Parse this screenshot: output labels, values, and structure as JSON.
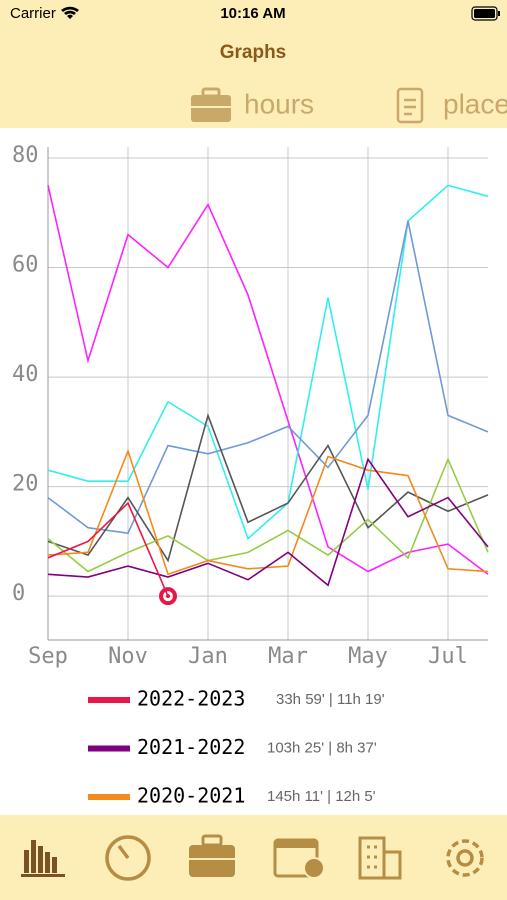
{
  "status_bar": {
    "carrier": "Carrier",
    "time": "10:16 AM"
  },
  "nav": {
    "title": "Graphs"
  },
  "tabs": [
    "hours",
    "place"
  ],
  "chart_data": {
    "type": "line",
    "categories": [
      "Sep",
      null,
      "Nov",
      null,
      "Jan",
      null,
      "Mar",
      null,
      "May",
      null,
      "Jul",
      null
    ],
    "ylim": [
      -8,
      82
    ],
    "yticks": [
      0,
      20,
      40,
      60,
      80
    ],
    "grid": true,
    "series": [
      {
        "name": "2022-2023",
        "summary": "33h 59' | 11h 19'",
        "color": "#e8174a",
        "values": [
          7,
          10,
          17,
          0,
          null,
          null,
          null,
          null,
          null,
          null,
          null,
          null
        ]
      },
      {
        "name": "2021-2022",
        "summary": "103h 25' | 8h 37'",
        "color": "#800080",
        "values": [
          4,
          3.5,
          5.5,
          3.5,
          6,
          3,
          8,
          2,
          25,
          14.5,
          18,
          9
        ]
      },
      {
        "name": "2020-2021",
        "summary": "145h 11' | 12h 5'",
        "color": "#f28a1c",
        "values": [
          7.5,
          8,
          26.5,
          4,
          6.5,
          5,
          5.5,
          25.5,
          23,
          22,
          5,
          4.5
        ]
      },
      {
        "color": "#99cc44",
        "values": [
          10.5,
          4.5,
          8,
          11,
          6.5,
          8,
          12,
          7.5,
          14,
          7,
          25,
          8
        ]
      },
      {
        "color": "#555555",
        "values": [
          10,
          7.5,
          18,
          6.5,
          33,
          13.5,
          17,
          27.5,
          12.5,
          19,
          15.5,
          18.5
        ]
      },
      {
        "color": "#6f9ad8",
        "values": [
          18,
          12.5,
          11.5,
          27.5,
          26,
          28,
          31,
          23.5,
          33,
          68.5,
          33,
          30
        ]
      },
      {
        "color": "#33eeee",
        "values": [
          23,
          21,
          21,
          35.5,
          31,
          10.5,
          17,
          54.5,
          19.5,
          68.5,
          75,
          73
        ]
      },
      {
        "color": "#ff22ff",
        "values": [
          75,
          43,
          66,
          60,
          71.5,
          55,
          32,
          9,
          4.5,
          8,
          9.5,
          4
        ]
      }
    ]
  }
}
